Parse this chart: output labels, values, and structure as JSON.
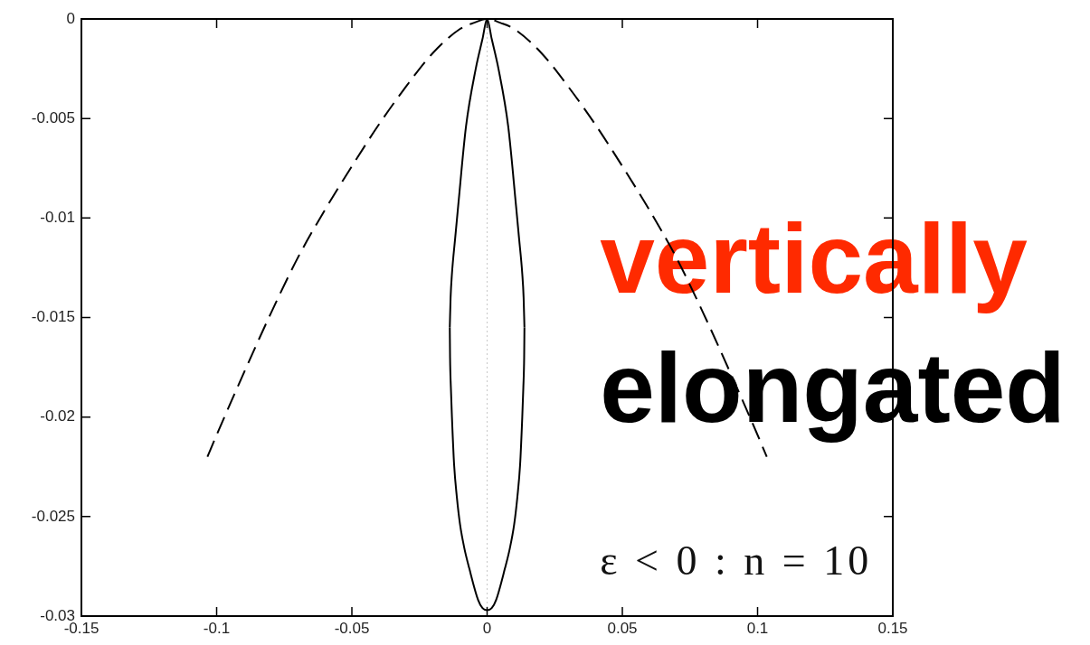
{
  "chart_data": {
    "type": "line",
    "xlim": [
      -0.15,
      0.15
    ],
    "xticks": [
      -0.15,
      -0.1,
      -0.05,
      0,
      0.05,
      0.1,
      0.15
    ],
    "ylim": [
      -0.03,
      0
    ],
    "yticks": [
      -0.03,
      -0.025,
      -0.02,
      -0.015,
      -0.01,
      -0.005,
      0
    ],
    "series": [
      {
        "color": "#000000",
        "line_style": "dashed",
        "x": [
          -0.1034,
          -0.1,
          -0.09,
          -0.08,
          -0.07,
          -0.06,
          -0.05,
          -0.04,
          -0.03,
          -0.02,
          -0.01,
          -0.005,
          0,
          0.005,
          0.01,
          0.02,
          0.03,
          0.04,
          0.05,
          0.06,
          0.07,
          0.08,
          0.09,
          0.1,
          0.1034
        ],
        "values": [
          -0.022,
          -0.0209,
          -0.0178,
          -0.0148,
          -0.012,
          -0.0096,
          -0.0074,
          -0.0053,
          -0.0034,
          -0.0017,
          -0.0005,
          -0.0002,
          0,
          -0.0002,
          -0.0005,
          -0.0017,
          -0.0034,
          -0.0053,
          -0.0074,
          -0.0096,
          -0.012,
          -0.0148,
          -0.0178,
          -0.0209,
          -0.022
        ]
      },
      {
        "color": "#000000",
        "line_style": "solid",
        "x": [
          -0.0138,
          -0.0135,
          -0.013,
          -0.0118,
          -0.0107,
          -0.0078,
          -0.0042,
          -0.0017,
          0,
          0.0017,
          0.0042,
          0.0078,
          0.0107,
          0.0118,
          0.013,
          0.0135,
          0.0138
        ],
        "values": [
          -0.0155,
          -0.014,
          -0.0128,
          -0.011,
          -0.0094,
          -0.0054,
          -0.0025,
          -0.001,
          0,
          -0.001,
          -0.0025,
          -0.0054,
          -0.0094,
          -0.011,
          -0.0128,
          -0.014,
          -0.0155
        ]
      },
      {
        "color": "#000000",
        "line_style": "solid",
        "x": [
          -0.0138,
          -0.0137,
          -0.0134,
          -0.013,
          -0.0122,
          -0.0112,
          -0.01,
          -0.0084,
          -0.0066,
          -0.0033,
          -0.0017,
          0,
          0.0017,
          0.0033,
          0.0066,
          0.0084,
          0.01,
          0.0112,
          0.0122,
          0.013,
          0.0134,
          0.0137,
          0.0138
        ],
        "values": [
          -0.0155,
          -0.017,
          -0.0185,
          -0.02,
          -0.0224,
          -0.024,
          -0.0254,
          -0.0266,
          -0.0276,
          -0.0292,
          -0.0296,
          -0.0297,
          -0.0296,
          -0.0292,
          -0.0276,
          -0.0266,
          -0.0254,
          -0.024,
          -0.0224,
          -0.02,
          -0.0185,
          -0.017,
          -0.0155
        ]
      }
    ],
    "ref_lines": [
      {
        "axis": "x",
        "value": 0,
        "color": "#c8c8c8",
        "line_style": "dotted"
      }
    ],
    "annotations": [
      "vertically",
      "elongated",
      "ε < 0 : n = 10"
    ]
  }
}
